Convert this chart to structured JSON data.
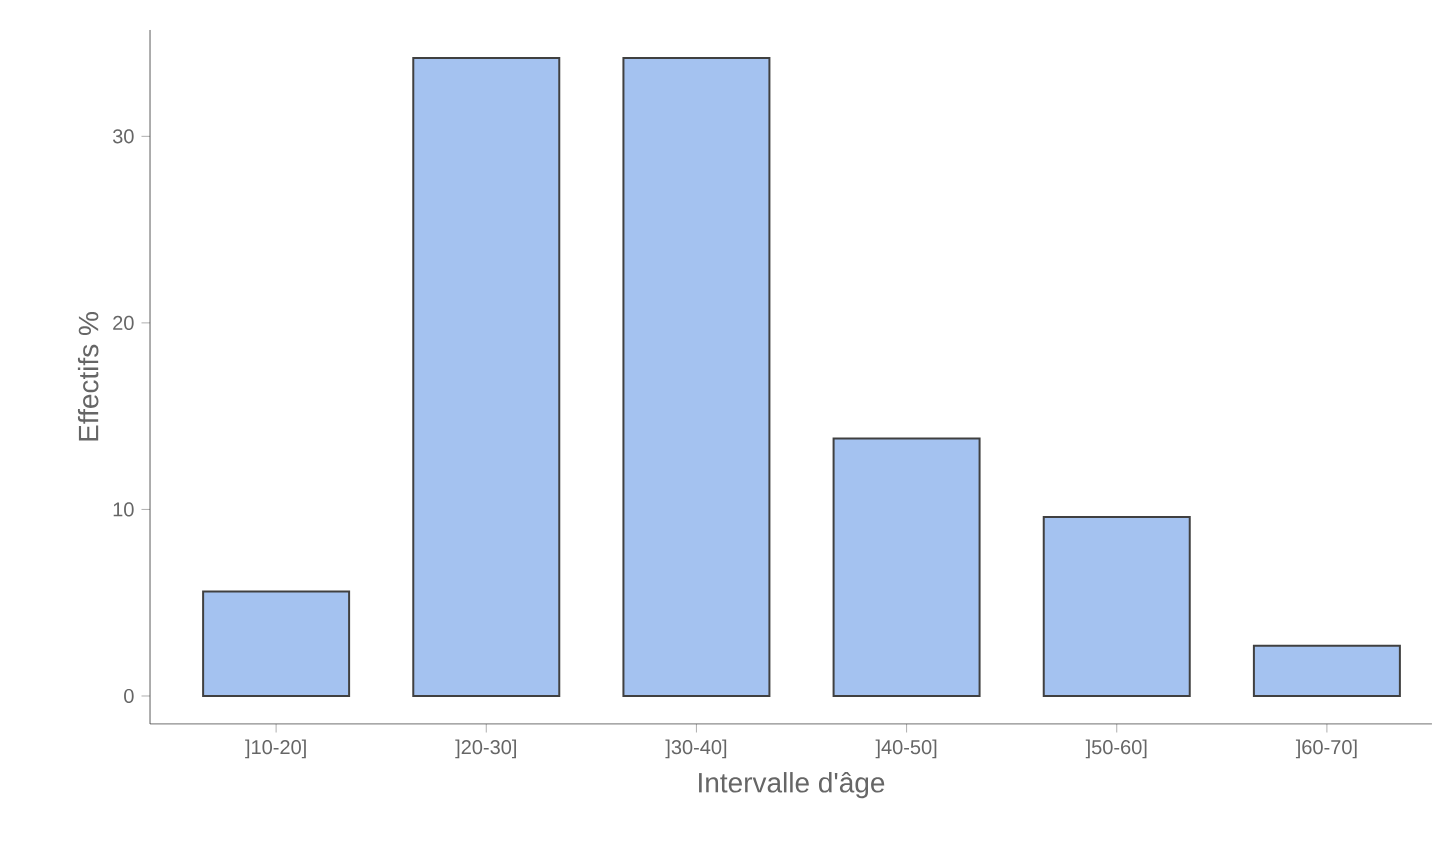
{
  "chart_data": {
    "type": "bar",
    "xlabel": "Intervalle d'âge",
    "ylabel": "Effectifs %",
    "categories": [
      "]10-20]",
      "]20-30]",
      "]30-40]",
      "]40-50]",
      "]50-60]",
      "]60-70]"
    ],
    "values": [
      5.6,
      34.2,
      34.2,
      13.8,
      9.6,
      2.7
    ],
    "color": "#a4c2f0",
    "ylim": [
      -1.5,
      35.7
    ],
    "yticks": [
      0,
      10,
      20,
      30
    ],
    "grid": false
  }
}
